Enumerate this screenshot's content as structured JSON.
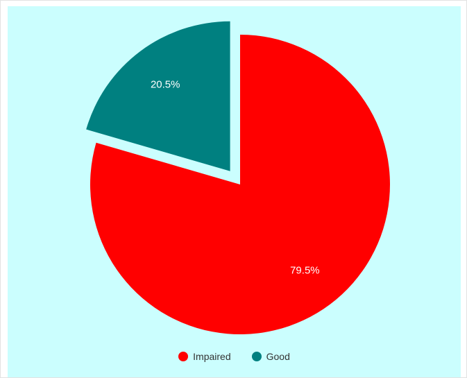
{
  "chart_data": {
    "type": "pie",
    "exploded_slice": "Good",
    "slices": [
      {
        "name": "Impaired",
        "value": 79.5,
        "label": "79.5%",
        "color": "#ff0000"
      },
      {
        "name": "Good",
        "value": 20.5,
        "label": "20.5%",
        "color": "#008080"
      }
    ],
    "legend": {
      "position": "bottom",
      "items": [
        {
          "label": "Impaired",
          "color": "#ff0000"
        },
        {
          "label": "Good",
          "color": "#008080"
        }
      ]
    },
    "background_color": "#cbfefe"
  }
}
